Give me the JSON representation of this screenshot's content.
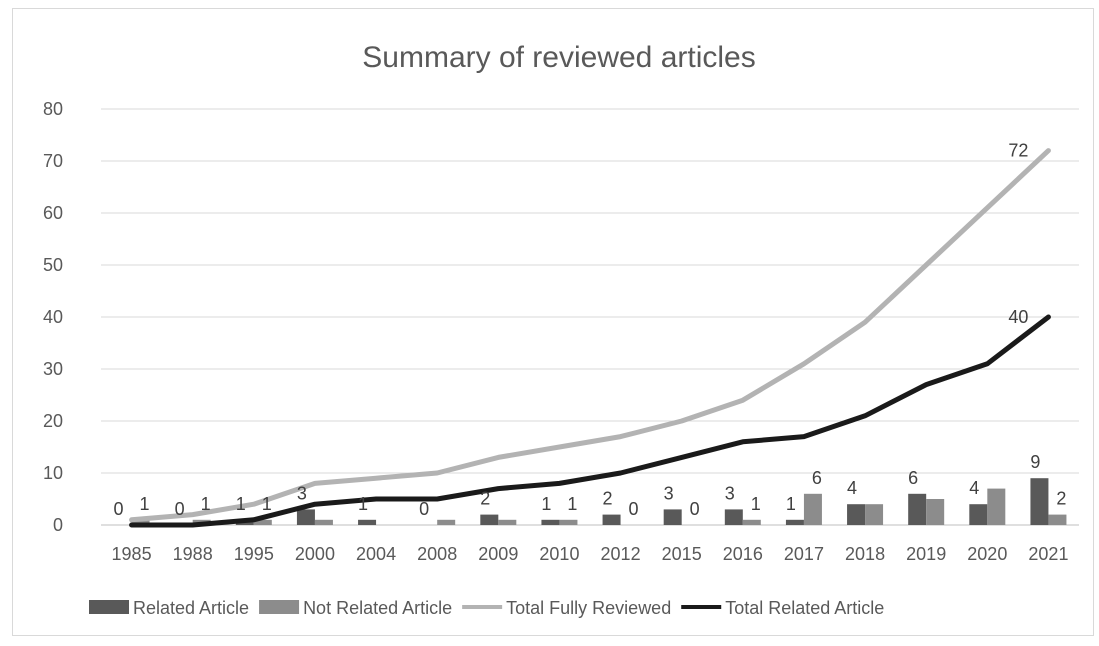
{
  "chart_data": {
    "type": "bar",
    "title": "Summary of reviewed articles",
    "categories": [
      "1985",
      "1988",
      "1995",
      "2000",
      "2004",
      "2008",
      "2009",
      "2010",
      "2012",
      "2015",
      "2016",
      "2017",
      "2018",
      "2019",
      "2020",
      "2021"
    ],
    "ylim": [
      0,
      80
    ],
    "yticks": [
      0,
      10,
      20,
      30,
      40,
      50,
      60,
      70,
      80
    ],
    "grid": true,
    "legend_position": "bottom",
    "series": [
      {
        "name": "Related Article",
        "kind": "bar",
        "color": "#595959",
        "values": [
          0,
          0,
          1,
          3,
          1,
          0,
          2,
          1,
          2,
          3,
          3,
          1,
          4,
          6,
          4,
          9
        ],
        "labels": [
          "0",
          "0",
          "1",
          "3",
          "1",
          "0",
          "2",
          "1",
          "2",
          "3",
          "3",
          "1",
          "4",
          "6",
          "4",
          "9"
        ]
      },
      {
        "name": "Not Related Article",
        "kind": "bar",
        "color": "#8c8c8c",
        "values": [
          1,
          1,
          1,
          1,
          0,
          1,
          1,
          1,
          0,
          0,
          1,
          6,
          4,
          5,
          7,
          2
        ],
        "labels": [
          "1",
          "1",
          "1",
          "",
          "",
          "",
          "",
          "1",
          "0",
          "0",
          "1",
          "6",
          "",
          "",
          "",
          "2"
        ]
      },
      {
        "name": "Total Fully Reviewed",
        "kind": "line",
        "color": "#b3b3b3",
        "values": [
          1,
          2,
          4,
          8,
          9,
          10,
          13,
          15,
          17,
          20,
          24,
          31,
          39,
          50,
          61,
          72
        ],
        "labels": [
          "",
          "",
          "",
          "",
          "",
          "",
          "",
          "",
          "",
          "",
          "",
          "",
          "",
          "",
          "",
          "72"
        ]
      },
      {
        "name": "Total Related Article",
        "kind": "line",
        "color": "#1a1a1a",
        "values": [
          0,
          0,
          1,
          4,
          5,
          5,
          7,
          8,
          10,
          13,
          16,
          17,
          21,
          27,
          31,
          40
        ],
        "labels": [
          "",
          "",
          "",
          "",
          "",
          "",
          "",
          "",
          "",
          "",
          "",
          "",
          "",
          "",
          "",
          "40"
        ]
      }
    ]
  }
}
